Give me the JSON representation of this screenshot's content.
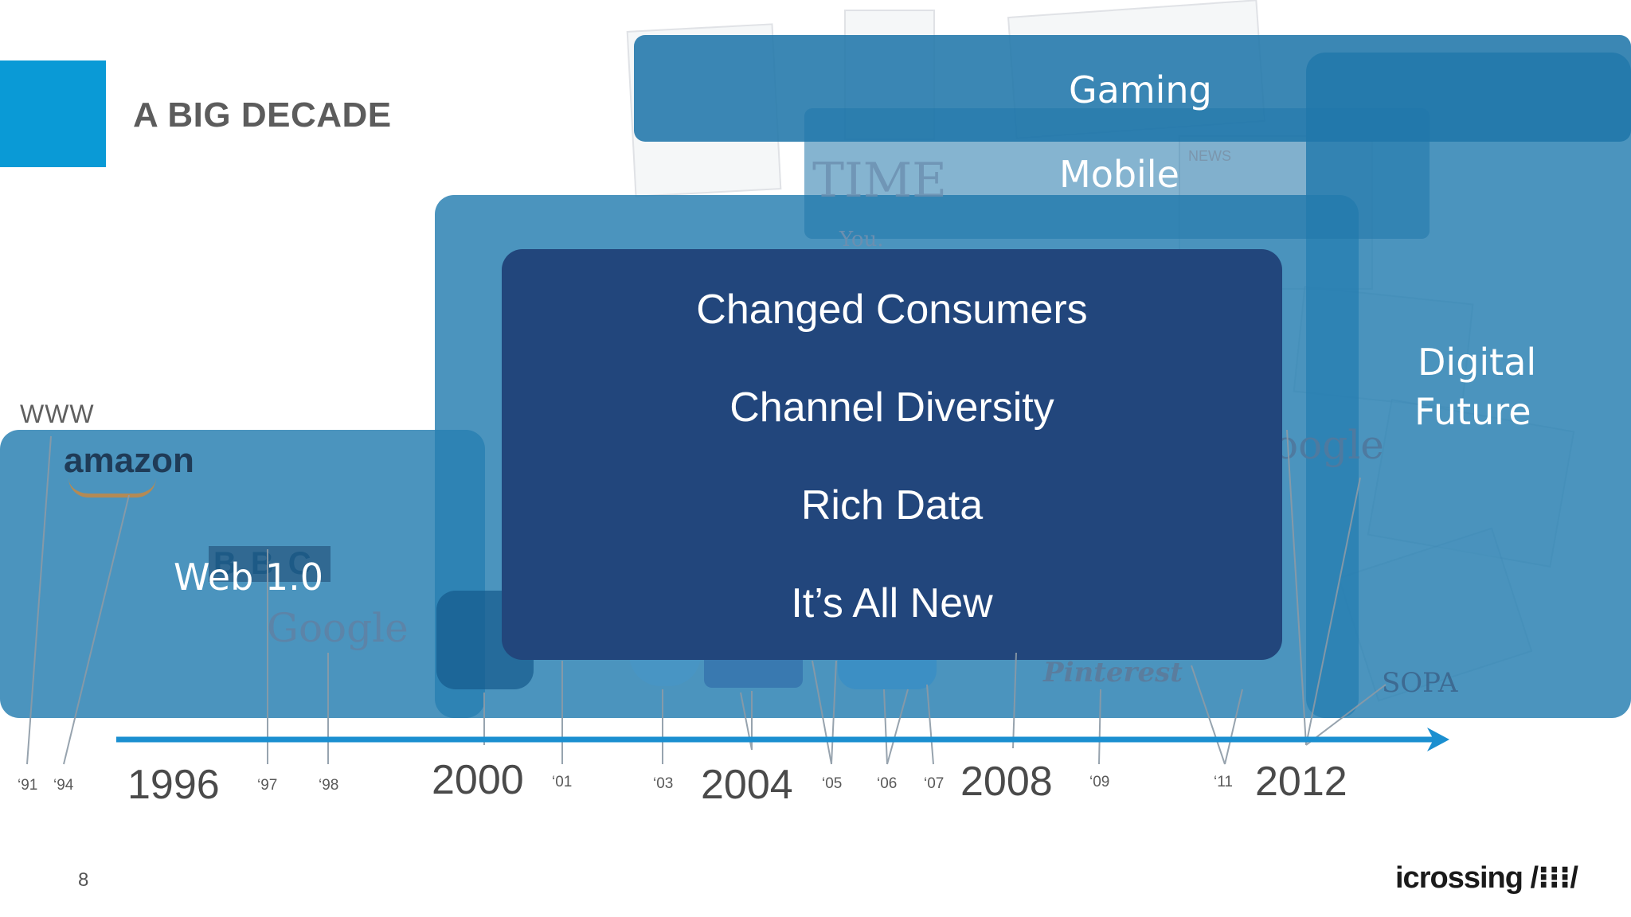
{
  "slide": {
    "title": "A BIG DECADE",
    "page_number": "8",
    "brand": "icrossing /⁝⁝⁝/"
  },
  "colors": {
    "accent": "#0a9ad6",
    "era_block": "#2880b2",
    "core_block": "#22467c",
    "timeline_arrow": "#1b8fd0"
  },
  "www_label": "WWW",
  "eras": {
    "web": "Web 1.0",
    "gaming": "Gaming",
    "mobile": "Mobile",
    "digital_line1": "Digital",
    "digital_line2": "Future"
  },
  "core_items": [
    "Changed Consumers",
    "Channel Diversity",
    "Rich Data",
    "It’s All New"
  ],
  "collage_text": {
    "amazon": "amazon",
    "bbc": "BBC",
    "google": "Google",
    "google_right": "oogle",
    "pinterest": "Pinterest",
    "sopa": "SOPA",
    "news": "NEWS",
    "time": "TIME",
    "you": "You."
  },
  "timeline": {
    "major_years": [
      "1996",
      "2000",
      "2004",
      "2008",
      "2012"
    ],
    "minor_years": [
      "‘91",
      "‘94",
      "‘97",
      "‘98",
      "‘01",
      "‘03",
      "‘05",
      "‘06",
      "‘07",
      "‘09",
      "‘11"
    ]
  }
}
